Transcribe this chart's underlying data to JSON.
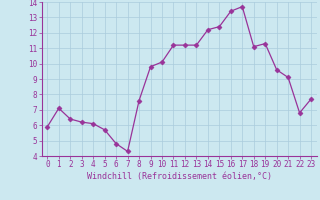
{
  "x": [
    0,
    1,
    2,
    3,
    4,
    5,
    6,
    7,
    8,
    9,
    10,
    11,
    12,
    13,
    14,
    15,
    16,
    17,
    18,
    19,
    20,
    21,
    22,
    23
  ],
  "y": [
    5.9,
    7.1,
    6.4,
    6.2,
    6.1,
    5.7,
    4.8,
    4.3,
    7.6,
    9.8,
    10.1,
    11.2,
    11.2,
    11.2,
    12.2,
    12.4,
    13.4,
    13.7,
    11.1,
    11.3,
    9.6,
    9.1,
    6.8,
    7.7
  ],
  "line_color": "#993399",
  "marker": "D",
  "markersize": 2.5,
  "linewidth": 0.9,
  "bg_color": "#cce8f0",
  "grid_color": "#aaccdd",
  "xlabel": "Windchill (Refroidissement éolien,°C)",
  "xlabel_color": "#993399",
  "tick_color": "#993399",
  "spine_color": "#993399",
  "ylim": [
    4,
    14
  ],
  "xlim": [
    -0.5,
    23.5
  ],
  "yticks": [
    4,
    5,
    6,
    7,
    8,
    9,
    10,
    11,
    12,
    13,
    14
  ],
  "xticks": [
    0,
    1,
    2,
    3,
    4,
    5,
    6,
    7,
    8,
    9,
    10,
    11,
    12,
    13,
    14,
    15,
    16,
    17,
    18,
    19,
    20,
    21,
    22,
    23
  ],
  "tick_fontsize": 5.5,
  "xlabel_fontsize": 6.0
}
